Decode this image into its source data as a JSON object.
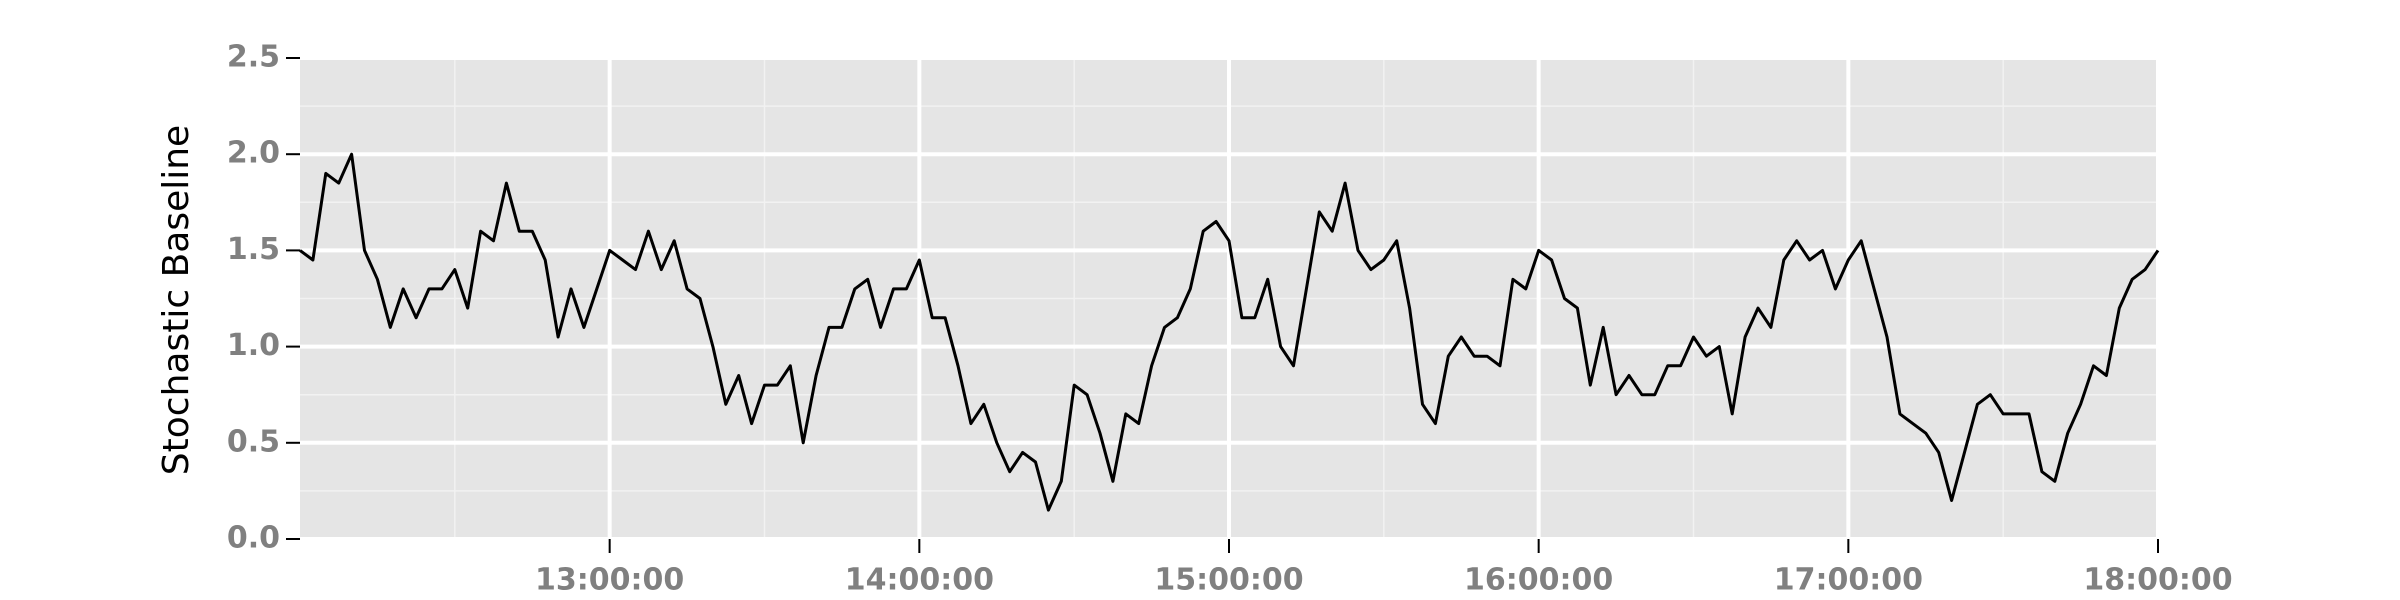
{
  "chart_data": {
    "type": "line",
    "ylabel": "Stochastic Baseline",
    "xlim": [
      "12:00:00",
      "18:00:00"
    ],
    "xticks": [
      "13:00:00",
      "14:00:00",
      "15:00:00",
      "16:00:00",
      "17:00:00",
      "18:00:00"
    ],
    "xminorticks": [
      "12:30:00",
      "13:30:00",
      "14:30:00",
      "15:30:00",
      "16:30:00",
      "17:30:00"
    ],
    "ylim": [
      0,
      2.5
    ],
    "yticks": [
      0.0,
      0.5,
      1.0,
      1.5,
      2.0,
      2.5
    ],
    "yminorticks": [
      0.25,
      0.75,
      1.25,
      1.75,
      2.25
    ],
    "grid": true,
    "x": [
      "12:00:00",
      "12:02:30",
      "12:05:00",
      "12:07:30",
      "12:10:00",
      "12:12:30",
      "12:15:00",
      "12:17:30",
      "12:20:00",
      "12:22:30",
      "12:25:00",
      "12:27:30",
      "12:30:00",
      "12:32:30",
      "12:35:00",
      "12:37:30",
      "12:40:00",
      "12:42:30",
      "12:45:00",
      "12:47:30",
      "12:50:00",
      "12:52:30",
      "12:55:00",
      "12:57:30",
      "13:00:00",
      "13:02:30",
      "13:05:00",
      "13:07:30",
      "13:10:00",
      "13:12:30",
      "13:15:00",
      "13:17:30",
      "13:20:00",
      "13:22:30",
      "13:25:00",
      "13:27:30",
      "13:30:00",
      "13:32:30",
      "13:35:00",
      "13:37:30",
      "13:40:00",
      "13:42:30",
      "13:45:00",
      "13:47:30",
      "13:50:00",
      "13:52:30",
      "13:55:00",
      "13:57:30",
      "14:00:00",
      "14:02:30",
      "14:05:00",
      "14:07:30",
      "14:10:00",
      "14:12:30",
      "14:15:00",
      "14:17:30",
      "14:20:00",
      "14:22:30",
      "14:25:00",
      "14:27:30",
      "14:30:00",
      "14:32:30",
      "14:35:00",
      "14:37:30",
      "14:40:00",
      "14:42:30",
      "14:45:00",
      "14:47:30",
      "14:50:00",
      "14:52:30",
      "14:55:00",
      "14:57:30",
      "15:00:00",
      "15:02:30",
      "15:05:00",
      "15:07:30",
      "15:10:00",
      "15:12:30",
      "15:15:00",
      "15:17:30",
      "15:20:00",
      "15:22:30",
      "15:25:00",
      "15:27:30",
      "15:30:00",
      "15:32:30",
      "15:35:00",
      "15:37:30",
      "15:40:00",
      "15:42:30",
      "15:45:00",
      "15:47:30",
      "15:50:00",
      "15:52:30",
      "15:55:00",
      "15:57:30",
      "16:00:00",
      "16:02:30",
      "16:05:00",
      "16:07:30",
      "16:10:00",
      "16:12:30",
      "16:15:00",
      "16:17:30",
      "16:20:00",
      "16:22:30",
      "16:25:00",
      "16:27:30",
      "16:30:00",
      "16:32:30",
      "16:35:00",
      "16:37:30",
      "16:40:00",
      "16:42:30",
      "16:45:00",
      "16:47:30",
      "16:50:00",
      "16:52:30",
      "16:55:00",
      "16:57:30",
      "17:00:00",
      "17:02:30",
      "17:05:00",
      "17:07:30",
      "17:10:00",
      "17:12:30",
      "17:15:00",
      "17:17:30",
      "17:20:00",
      "17:22:30",
      "17:25:00",
      "17:27:30",
      "17:30:00",
      "17:32:30",
      "17:35:00",
      "17:37:30",
      "17:40:00",
      "17:42:30",
      "17:45:00",
      "17:47:30",
      "17:50:00",
      "17:52:30",
      "17:55:00",
      "17:57:30",
      "18:00:00"
    ],
    "series": [
      {
        "color": "#000000",
        "values": [
          1.5,
          1.45,
          1.9,
          1.85,
          2.0,
          1.5,
          1.35,
          1.1,
          1.3,
          1.15,
          1.3,
          1.3,
          1.4,
          1.2,
          1.6,
          1.55,
          1.85,
          1.6,
          1.6,
          1.45,
          1.05,
          1.3,
          1.1,
          1.3,
          1.5,
          1.45,
          1.4,
          1.6,
          1.4,
          1.55,
          1.3,
          1.25,
          1.0,
          0.7,
          0.85,
          0.6,
          0.8,
          0.8,
          0.9,
          0.5,
          0.85,
          1.1,
          1.1,
          1.3,
          1.35,
          1.1,
          1.3,
          1.3,
          1.45,
          1.15,
          1.15,
          0.9,
          0.6,
          0.7,
          0.5,
          0.35,
          0.45,
          0.4,
          0.15,
          0.3,
          0.8,
          0.75,
          0.55,
          0.3,
          0.65,
          0.6,
          0.9,
          1.1,
          1.15,
          1.3,
          1.6,
          1.65,
          1.55,
          1.15,
          1.15,
          1.35,
          1.0,
          0.9,
          1.3,
          1.7,
          1.6,
          1.85,
          1.5,
          1.4,
          1.45,
          1.55,
          1.2,
          0.7,
          0.6,
          0.95,
          1.05,
          0.95,
          0.95,
          0.9,
          1.35,
          1.3,
          1.5,
          1.45,
          1.25,
          1.2,
          0.8,
          1.1,
          0.75,
          0.85,
          0.75,
          0.75,
          0.9,
          0.9,
          1.05,
          0.95,
          1.0,
          0.65,
          1.05,
          1.2,
          1.1,
          1.45,
          1.55,
          1.45,
          1.5,
          1.3,
          1.45,
          1.55,
          1.3,
          1.05,
          0.65,
          0.6,
          0.55,
          0.45,
          0.2,
          0.45,
          0.7,
          0.75,
          0.65,
          0.65,
          0.65,
          0.35,
          0.3,
          0.55,
          0.7,
          0.9,
          0.85,
          1.2,
          1.35,
          1.4,
          1.5
        ]
      }
    ]
  }
}
